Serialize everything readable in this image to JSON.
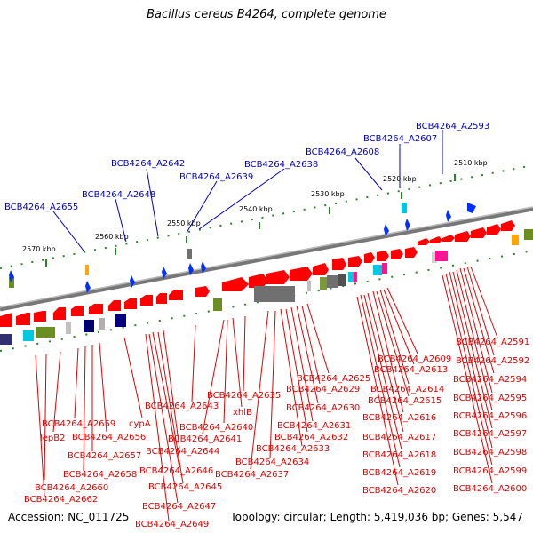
{
  "title": "Bacillus cereus B4264, complete genome",
  "footer": {
    "accession": "Accession: NC_011725",
    "summary": "Topology: circular; Length: 5,419,036 bp; Genes: 5,547"
  },
  "colors": {
    "backbone": "#808080",
    "gene_red": "#ff0000",
    "label_red": "#e00000",
    "label_blue": "#0000c0",
    "tick_green": "#228822"
  },
  "ticks": [
    "2510 kbp",
    "2520 kbp",
    "2530 kbp",
    "2540 kbp",
    "2550 kbp",
    "2560 kbp",
    "2570 kbp"
  ],
  "blue_labels": [
    "BCB4264_A2593",
    "BCB4264_A2607",
    "BCB4264_A2608",
    "BCB4264_A2638",
    "BCB4264_A2639",
    "BCB4264_A2642",
    "BCB4264_A2648",
    "BCB4264_A2655"
  ],
  "red_labels": [
    "BCB4264_A2591",
    "BCB4264_A2592",
    "BCB4264_A2594",
    "BCB4264_A2595",
    "BCB4264_A2596",
    "BCB4264_A2597",
    "BCB4264_A2598",
    "BCB4264_A2599",
    "BCB4264_A2600",
    "BCB4264_A2609",
    "BCB4264_A2613",
    "BCB4264_A2614",
    "BCB4264_A2615",
    "BCB4264_A2616",
    "BCB4264_A2617",
    "BCB4264_A2618",
    "BCB4264_A2619",
    "BCB4264_A2620",
    "BCB4264_A2625",
    "BCB4264_A2629",
    "BCB4264_A2630",
    "BCB4264_A2631",
    "BCB4264_A2632",
    "BCB4264_A2633",
    "BCB4264_A2634",
    "BCB4264_A2637",
    "BCB4264_A2635",
    "xhlB",
    "BCB4264_A2640",
    "BCB4264_A2641",
    "BCB4264_A2643",
    "BCB4264_A2644",
    "BCB4264_A2645",
    "BCB4264_A2646",
    "BCB4264_A2647",
    "BCB4264_A2649",
    "cypA",
    "BCB4264_A2656",
    "BCB4264_A2657",
    "BCB4264_A2658",
    "BCB4264_A2659",
    "lepB2",
    "BCB4264_A2660",
    "BCB4264_A2662"
  ]
}
